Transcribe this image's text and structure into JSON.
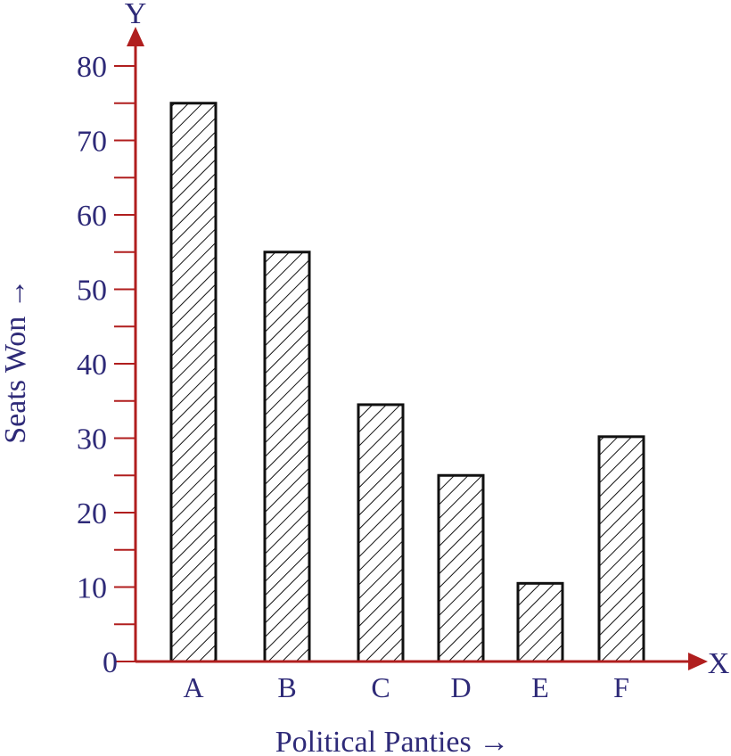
{
  "chart_data": {
    "type": "bar",
    "categories": [
      "A",
      "B",
      "C",
      "D",
      "E",
      "F"
    ],
    "values": [
      75,
      55,
      34.5,
      25,
      10.5,
      30.2
    ],
    "xlabel": "Political Panties →",
    "ylabel": "Seats Won →",
    "x_axis_letter": "X",
    "y_axis_letter": "Y",
    "ylim": [
      0,
      80
    ],
    "y_ticks": [
      0,
      10,
      20,
      30,
      40,
      50,
      60,
      70,
      80
    ],
    "grid": false,
    "colors": {
      "axis": "#b01e1e",
      "text": "#2e2a78",
      "bar_outline": "#111111",
      "hatch": "#111111"
    }
  }
}
